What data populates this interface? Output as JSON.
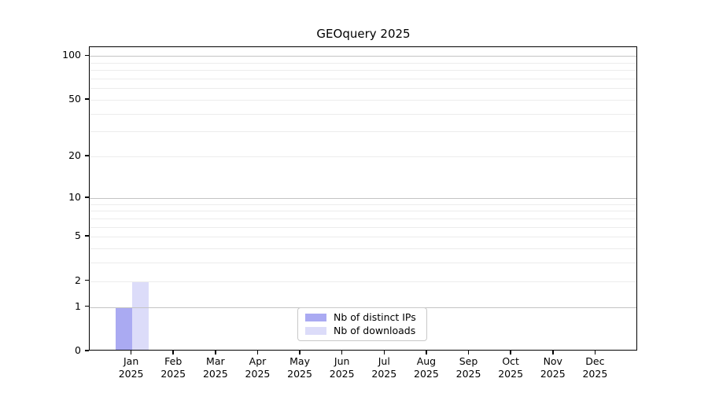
{
  "chart_data": {
    "type": "bar",
    "title": "GEOquery 2025",
    "x_tick_months": [
      "Jan",
      "Feb",
      "Mar",
      "Apr",
      "May",
      "Jun",
      "Jul",
      "Aug",
      "Sep",
      "Oct",
      "Nov",
      "Dec"
    ],
    "x_tick_year": "2025",
    "series": [
      {
        "name": "Nb of distinct IPs",
        "color": "#aaaaf2",
        "values": [
          1,
          0,
          0,
          0,
          0,
          0,
          0,
          0,
          0,
          0,
          0,
          0
        ]
      },
      {
        "name": "Nb of downloads",
        "color": "#dcdcf9",
        "values": [
          2,
          0,
          0,
          0,
          0,
          0,
          0,
          0,
          0,
          0,
          0,
          0
        ]
      }
    ],
    "yscale": "log1p",
    "ylim": [
      0,
      115
    ],
    "y_tick_values": [
      0,
      1,
      2,
      5,
      10,
      20,
      50,
      100
    ],
    "grid": {
      "major_values": [
        1,
        10,
        100
      ],
      "minor_values": [
        2,
        3,
        4,
        5,
        6,
        7,
        8,
        9,
        20,
        30,
        40,
        50,
        60,
        70,
        80,
        90
      ],
      "major_color": "#c4c4c4",
      "minor_color": "#ececec"
    },
    "legend_position": "bottom-center",
    "colors": {
      "axis": "#000000",
      "text": "#000000",
      "background": "#ffffff"
    }
  }
}
